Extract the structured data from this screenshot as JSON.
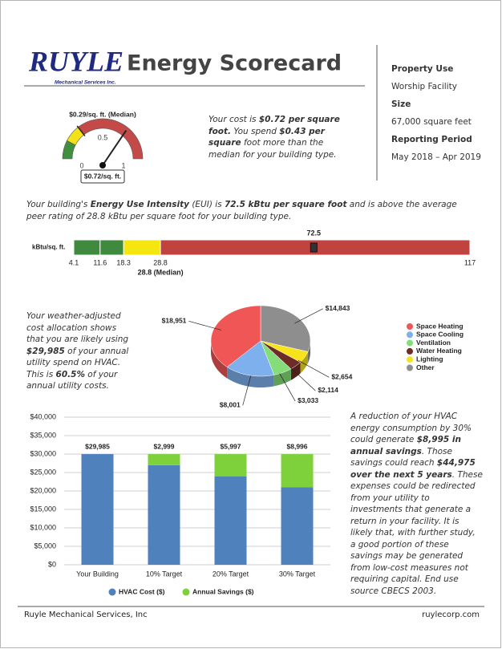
{
  "header": {
    "logo": "RUYLE",
    "logo_sub": "Mechanical Services Inc.",
    "title": "Energy Scorecard"
  },
  "property": [
    {
      "label": "Property Use",
      "value": "Worship Facility"
    },
    {
      "label": "Size",
      "value": "67,000 square feet"
    },
    {
      "label": "Reporting Period",
      "value": "May 2018 – Apr 2019"
    }
  ],
  "texts": {
    "gauge": [
      "Your cost is ",
      "$0.72 per square foot.",
      " You spend ",
      "$0.43 per square",
      " foot more than the median for your building type."
    ],
    "eui": [
      "Your building's ",
      "Energy Use Intensity",
      " (EUI) is ",
      "72.5 kBtu per square foot",
      " and is above the average peer rating of 28.8 kBtu per square foot for your building type."
    ],
    "pie": [
      "Your weather-adjusted cost allocation shows that you are likely using ",
      "$29,985",
      " of your annual utility spend on HVAC. This is ",
      "60.5%",
      " of your annual utility costs."
    ],
    "savings": [
      "A reduction of your HVAC energy consumption by 30% could generate ",
      "$8,995 in annual savings",
      ". Those savings could reach ",
      "$44,975 over the next 5 years",
      ". These expenses could be redirected from your utility to investments that generate a return in your facility. It is likely that, with further study, a good portion of these savings may be generated from low-cost measures not requiring capital. End use source CBECS 2003."
    ]
  },
  "chart_data": [
    {
      "type": "gauge",
      "xlim": [
        0,
        1
      ],
      "xticks": [
        0,
        0.5,
        1
      ],
      "bands": [
        {
          "from": 0,
          "to": 0.15,
          "color": "#3f8f3f"
        },
        {
          "from": 0.15,
          "to": 0.29,
          "color": "#f2e21a"
        },
        {
          "from": 0.29,
          "to": 1,
          "color": "#c44a4a"
        }
      ],
      "median": 0.29,
      "median_label": "$0.29/sq. ft. (Median)",
      "value": 0.72,
      "value_label": "$0.72/sq. ft."
    },
    {
      "type": "range-bar",
      "axis_label": "kBtu/sq. ft.",
      "xlim": [
        4.1,
        117
      ],
      "xticks": [
        4.1,
        11.6,
        18.3,
        28.8,
        117
      ],
      "band_colors": [
        "#3f8a3f",
        "#3f8a3f",
        "#f5e60f",
        "#c0433f"
      ],
      "median": 28.8,
      "median_label": "28.8 (Median)",
      "value": 72.5
    },
    {
      "type": "pie",
      "categories": [
        "Space Heating",
        "Space Cooling",
        "Ventilation",
        "Water Heating",
        "Lighting",
        "Other"
      ],
      "values": [
        18951,
        8001,
        3033,
        2114,
        2654,
        14843
      ],
      "value_labels": [
        "$18,951",
        "$8,001",
        "$3,033",
        "$2,114",
        "$2,654",
        "$14,843"
      ],
      "colors": [
        "#f05656",
        "#7db0ec",
        "#84dd78",
        "#6e2b28",
        "#f6e31c",
        "#8e8e8e"
      ]
    },
    {
      "type": "stacked-bar",
      "categories": [
        "Your Building",
        "10% Target",
        "20% Target",
        "30% Target"
      ],
      "series": [
        {
          "name": "HVAC Cost ($)",
          "color": "#4f81bd",
          "values": [
            29985,
            26986,
            23988,
            20989
          ],
          "value_labels": [
            "$29,985",
            null,
            null,
            null
          ]
        },
        {
          "name": "Annual Savings ($)",
          "color": "#7fd13b",
          "values": [
            0,
            2999,
            5997,
            8996
          ],
          "value_labels": [
            null,
            "$2,999",
            "$5,997",
            "$8,996"
          ]
        }
      ],
      "ylim": [
        0,
        40000
      ],
      "yticks": [
        {
          "value": 0,
          "label": "$0"
        },
        {
          "value": 5000,
          "label": "$5,000"
        },
        {
          "value": 10000,
          "label": "$10,000"
        },
        {
          "value": 15000,
          "label": "$15,000"
        },
        {
          "value": 20000,
          "label": "$20,000"
        },
        {
          "value": 25000,
          "label": "$25,000"
        },
        {
          "value": 30000,
          "label": "$30,000"
        },
        {
          "value": 35000,
          "label": "$35,000"
        },
        {
          "value": 40000,
          "label": "$40,000"
        }
      ],
      "grid": true
    }
  ],
  "footer": {
    "company": "Ruyle Mechanical Services, Inc",
    "website": "ruylecorp.com"
  }
}
